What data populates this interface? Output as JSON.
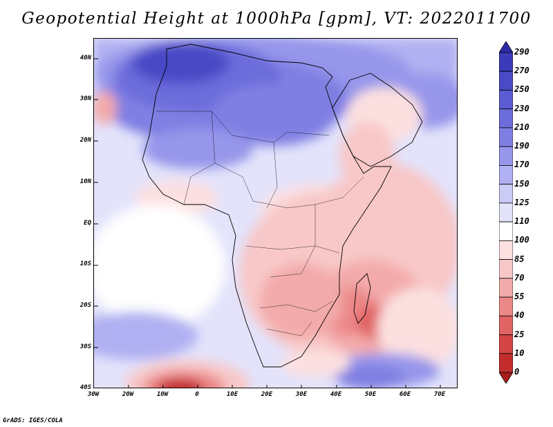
{
  "title": "Geopotential Height at 1000hPa [gpm], VT: 2022011700",
  "footer": "GrADS: IGES/COLA",
  "map": {
    "region": "Africa",
    "variable": "Geopotential Height",
    "level": "1000hPa",
    "units": "gpm",
    "valid_time": "2022011700",
    "lon_range": [
      -30,
      75
    ],
    "lat_range": [
      -40,
      45
    ],
    "lat_labels": [
      "40N",
      "30N",
      "20N",
      "10N",
      "EQ",
      "10S",
      "20S",
      "30S",
      "40S"
    ],
    "lon_labels": [
      "30W",
      "20W",
      "10W",
      "0",
      "10E",
      "20E",
      "30E",
      "40E",
      "50E",
      "60E",
      "70E"
    ]
  },
  "colorbar": {
    "levels": [
      "290",
      "270",
      "250",
      "230",
      "210",
      "190",
      "170",
      "150",
      "125",
      "110",
      "100",
      "85",
      "70",
      "55",
      "40",
      "25",
      "10",
      "0"
    ],
    "colors": [
      "#2c2aa8",
      "#3b3ab8",
      "#4a4ac6",
      "#5b5bd2",
      "#6c6cdb",
      "#7f7fe3",
      "#9696eb",
      "#b0b0f2",
      "#cbcbf7",
      "#e3e3fb",
      "#ffffff",
      "#fce0e0",
      "#f8c8c8",
      "#f3aaaa",
      "#ec8888",
      "#e16464",
      "#d44545",
      "#c32c2c",
      "#a81c1c"
    ]
  }
}
